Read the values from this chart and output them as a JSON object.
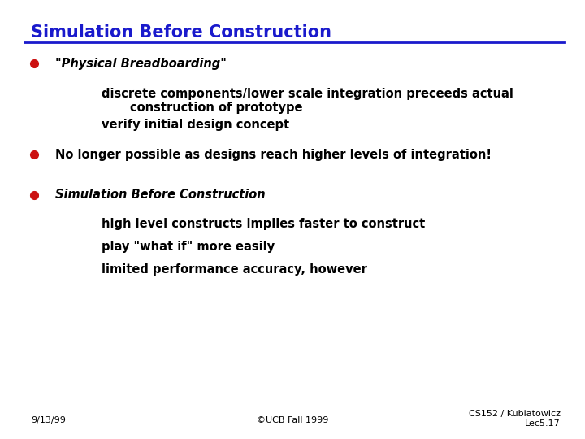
{
  "title": "Simulation Before Construction",
  "title_color": "#1a1acc",
  "bg_color": "#ffffff",
  "bullet_color": "#cc1111",
  "bullet1_italic": "\"Physical Breadboarding\"",
  "bullet1_sub1a": "discrete components/lower scale integration preceeds actual",
  "bullet1_sub1b": "construction of prototype",
  "bullet1_sub2": "verify initial design concept",
  "bullet2": "No longer possible as designs reach higher levels of integration!",
  "bullet3_italic": "Simulation Before Construction",
  "bullet3_sub1": "high level constructs implies faster to construct",
  "bullet3_sub2": "play \"what if\" more easily",
  "bullet3_sub3": "limited performance accuracy, however",
  "footer_left": "9/13/99",
  "footer_center": "©UCB Fall 1999",
  "footer_right_line1": "CS152 / Kubiatowicz",
  "footer_right_line2": "Lec5.17",
  "line_color": "#1a1acc",
  "text_color": "#000000",
  "font_size_title": 15,
  "font_size_body": 10.5,
  "font_size_footer": 8
}
